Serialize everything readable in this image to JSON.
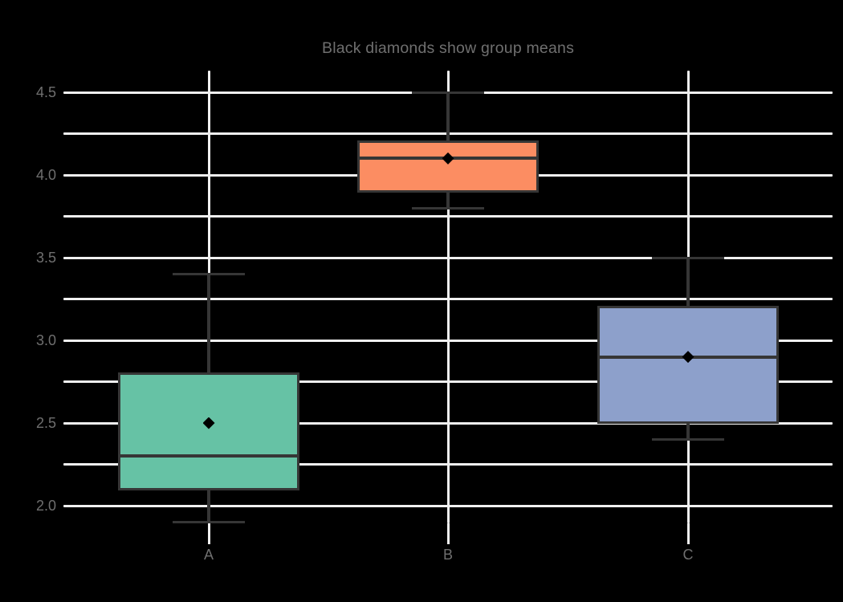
{
  "chart_data": {
    "type": "box",
    "title": "Black diamonds show group means",
    "subtitle": "",
    "categories": [
      "A",
      "B",
      "C"
    ],
    "series": [
      {
        "category": "A",
        "whisker_low": 1.9,
        "q1": 2.1,
        "median": 2.3,
        "q3": 2.8,
        "whisker_high": 3.4,
        "mean": 2.5,
        "fill_color": "#66c2a5"
      },
      {
        "category": "B",
        "whisker_low": 3.8,
        "q1": 3.9,
        "median": 4.1,
        "q3": 4.2,
        "whisker_high": 4.5,
        "mean": 4.1,
        "fill_color": "#fc8d62"
      },
      {
        "category": "C",
        "whisker_low": 2.4,
        "q1": 2.5,
        "median": 2.9,
        "q3": 3.2,
        "whisker_high": 3.5,
        "mean": 2.9,
        "fill_color": "#8da0cb"
      }
    ],
    "mean_marker": "black-diamond",
    "xlabel": "",
    "ylabel": "",
    "ytick_labels": [
      "2.0",
      "2.5",
      "3.0",
      "3.5",
      "4.0",
      "4.5"
    ],
    "ytick_values": [
      2.0,
      2.5,
      3.0,
      3.5,
      4.0,
      4.5
    ],
    "minor_gridline_step": 0.25,
    "ylim": [
      1.89,
      4.63
    ],
    "grid": "on",
    "legend": "none",
    "colors": {
      "background": "#000000",
      "gridline": "#f0f0f0",
      "box_edge": "#363636",
      "whisker": "#363636",
      "median": "#363636",
      "mean_marker": "#000000",
      "tick_label": "#6f6f6f",
      "title": "#6f6f6f"
    }
  }
}
